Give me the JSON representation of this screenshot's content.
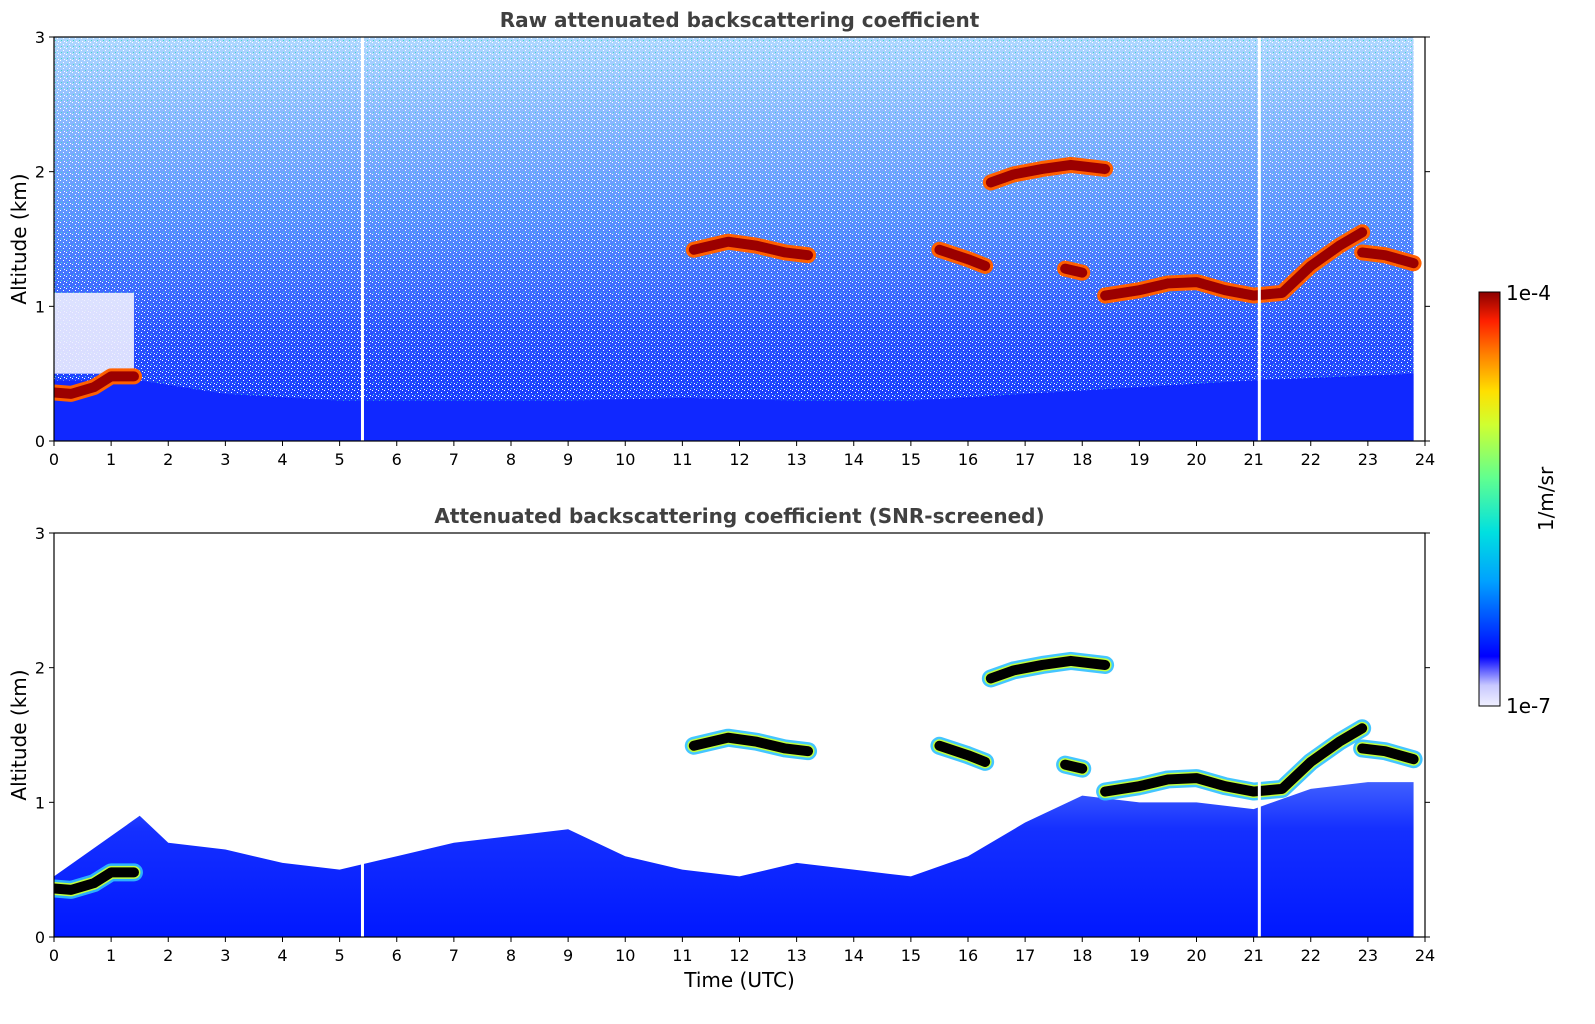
{
  "chart_data": [
    {
      "type": "heatmap",
      "title": "Raw attenuated backscattering coefficient",
      "xlabel": "",
      "ylabel": "Altitude (km)",
      "xlim": [
        0,
        24
      ],
      "ylim": [
        0,
        3
      ],
      "x_ticks": [
        "0",
        "1",
        "2",
        "3",
        "4",
        "5",
        "6",
        "7",
        "8",
        "9",
        "10",
        "11",
        "12",
        "13",
        "14",
        "15",
        "16",
        "17",
        "18",
        "19",
        "20",
        "21",
        "22",
        "23",
        "24"
      ],
      "y_ticks": [
        "0",
        "1",
        "2",
        "3"
      ],
      "noise_floor_km": [
        [
          0,
          0.45
        ],
        [
          1.5,
          0.45
        ],
        [
          3,
          0.35
        ],
        [
          5,
          0.3
        ],
        [
          7,
          0.3
        ],
        [
          9,
          0.3
        ],
        [
          11,
          0.32
        ],
        [
          13,
          0.3
        ],
        [
          15,
          0.3
        ],
        [
          17,
          0.35
        ],
        [
          19,
          0.4
        ],
        [
          21,
          0.45
        ],
        [
          23.8,
          0.5
        ]
      ],
      "clear_region": {
        "x": [
          0,
          1.4
        ],
        "y": [
          0.5,
          1.1
        ]
      },
      "data_gaps_utc": [
        5.4,
        21.1
      ],
      "data_end_utc": 23.8,
      "strong_backscatter_layers": [
        {
          "x": [
            0.0,
            0.3,
            0.7,
            1.0,
            1.4
          ],
          "y": [
            0.36,
            0.35,
            0.4,
            0.48,
            0.48
          ]
        },
        {
          "x": [
            11.2,
            11.8,
            12.3,
            12.8,
            13.2
          ],
          "y": [
            1.42,
            1.48,
            1.45,
            1.4,
            1.38
          ]
        },
        {
          "x": [
            15.5,
            16.0,
            16.3
          ],
          "y": [
            1.42,
            1.35,
            1.3
          ]
        },
        {
          "x": [
            16.4,
            16.8,
            17.3,
            17.8,
            18.4
          ],
          "y": [
            1.92,
            1.98,
            2.02,
            2.05,
            2.02
          ]
        },
        {
          "x": [
            17.7,
            18.0
          ],
          "y": [
            1.28,
            1.25
          ]
        },
        {
          "x": [
            18.4,
            19.0,
            19.5,
            20.0,
            20.5,
            21.0,
            21.5,
            22.0,
            22.5,
            22.9
          ],
          "y": [
            1.08,
            1.12,
            1.17,
            1.18,
            1.12,
            1.08,
            1.1,
            1.3,
            1.45,
            1.55
          ]
        },
        {
          "x": [
            22.9,
            23.3,
            23.8
          ],
          "y": [
            1.4,
            1.38,
            1.32
          ]
        }
      ]
    },
    {
      "type": "heatmap",
      "title": "Attenuated backscattering coefficient (SNR-screened)",
      "xlabel": "Time (UTC)",
      "ylabel": "Altitude (km)",
      "xlim": [
        0,
        24
      ],
      "ylim": [
        0,
        3
      ],
      "x_ticks": [
        "0",
        "1",
        "2",
        "3",
        "4",
        "5",
        "6",
        "7",
        "8",
        "9",
        "10",
        "11",
        "12",
        "13",
        "14",
        "15",
        "16",
        "17",
        "18",
        "19",
        "20",
        "21",
        "22",
        "23",
        "24"
      ],
      "y_ticks": [
        "0",
        "1",
        "2",
        "3"
      ],
      "signal_top_km": [
        [
          0,
          0.45
        ],
        [
          1.5,
          0.9
        ],
        [
          2,
          0.7
        ],
        [
          3,
          0.65
        ],
        [
          4,
          0.55
        ],
        [
          5,
          0.5
        ],
        [
          6,
          0.6
        ],
        [
          7,
          0.7
        ],
        [
          8,
          0.75
        ],
        [
          9,
          0.8
        ],
        [
          10,
          0.6
        ],
        [
          11,
          0.5
        ],
        [
          12,
          0.45
        ],
        [
          13,
          0.55
        ],
        [
          14,
          0.5
        ],
        [
          15,
          0.45
        ],
        [
          16,
          0.6
        ],
        [
          17,
          0.85
        ],
        [
          18,
          1.05
        ],
        [
          19,
          1.0
        ],
        [
          20,
          1.0
        ],
        [
          21,
          0.95
        ],
        [
          22,
          1.1
        ],
        [
          23,
          1.15
        ],
        [
          23.8,
          1.15
        ]
      ],
      "data_gaps_utc": [
        5.4,
        21.1
      ],
      "data_end_utc": 23.8,
      "strong_backscatter_layers": [
        {
          "x": [
            0.0,
            0.3,
            0.7,
            1.0,
            1.4
          ],
          "y": [
            0.36,
            0.35,
            0.4,
            0.48,
            0.48
          ]
        },
        {
          "x": [
            11.2,
            11.8,
            12.3,
            12.8,
            13.2
          ],
          "y": [
            1.42,
            1.48,
            1.45,
            1.4,
            1.38
          ]
        },
        {
          "x": [
            15.5,
            16.0,
            16.3
          ],
          "y": [
            1.42,
            1.35,
            1.3
          ]
        },
        {
          "x": [
            16.4,
            16.8,
            17.3,
            17.8,
            18.4
          ],
          "y": [
            1.92,
            1.98,
            2.02,
            2.05,
            2.02
          ]
        },
        {
          "x": [
            17.7,
            18.0
          ],
          "y": [
            1.28,
            1.25
          ]
        },
        {
          "x": [
            18.4,
            19.0,
            19.5,
            20.0,
            20.5,
            21.0,
            21.5,
            22.0,
            22.5,
            22.9
          ],
          "y": [
            1.08,
            1.12,
            1.17,
            1.18,
            1.12,
            1.08,
            1.1,
            1.3,
            1.45,
            1.55
          ]
        },
        {
          "x": [
            22.9,
            23.3,
            23.8
          ],
          "y": [
            1.4,
            1.38,
            1.32
          ]
        }
      ]
    }
  ],
  "colorbar": {
    "label": "1/m/sr",
    "max_label": "1e-4",
    "min_label": "1e-7",
    "scale": "log",
    "colors": [
      "#f0f0ff",
      "#c8c8ff",
      "#0000ff",
      "#00a0ff",
      "#00e0e0",
      "#60ff90",
      "#d0ff30",
      "#ffe000",
      "#ff8000",
      "#ff2000",
      "#8b0000"
    ]
  }
}
